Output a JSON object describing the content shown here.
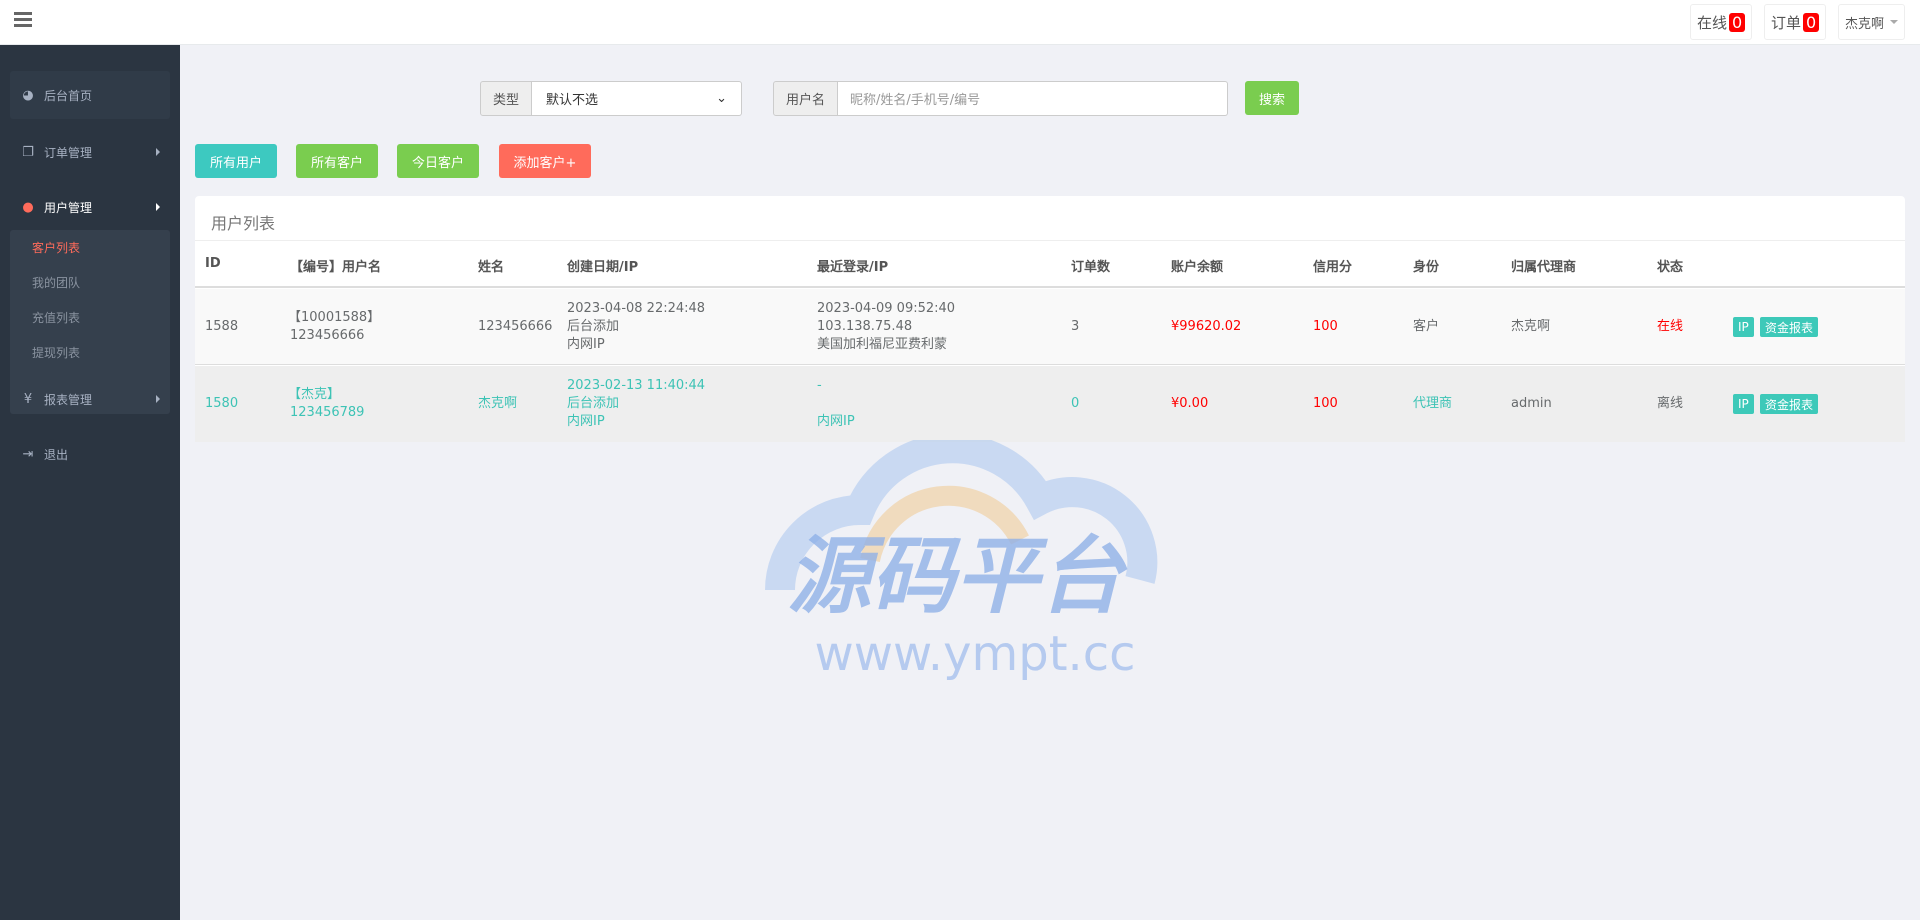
{
  "header": {
    "online_label": "在线",
    "online_count": "0",
    "orders_label": "订单",
    "orders_count": "0",
    "user": "杰克啊"
  },
  "sidebar": {
    "items": [
      {
        "label": "后台首页",
        "icon": "dashboard-icon"
      },
      {
        "label": "订单管理",
        "icon": "copy-icon"
      },
      {
        "label": "用户管理",
        "icon": "user-icon"
      },
      {
        "label": "报表管理",
        "icon": "yen-icon"
      },
      {
        "label": "退出",
        "icon": "sign-out-icon"
      }
    ],
    "sub_items": [
      "客户列表",
      "我的团队",
      "充值列表",
      "提现列表"
    ]
  },
  "filter": {
    "type_label": "类型",
    "type_value": "默认不选",
    "username_label": "用户名",
    "username_placeholder": "昵称/姓名/手机号/编号",
    "search_label": "搜索"
  },
  "actions": {
    "all_users": "所有用户",
    "all_customers": "所有客户",
    "today_customers": "今日客户",
    "add_customer": "添加客户+"
  },
  "colors": {
    "teal": "#3dc9b9",
    "green": "#7acd4f",
    "red": "#ff6b5b",
    "sidebar": "#2b3541"
  },
  "table": {
    "title": "用户列表",
    "columns": [
      "ID",
      "【编号】用户名",
      "姓名",
      "创建日期/IP",
      "最近登录/IP",
      "订单数",
      "账户余额",
      "信用分",
      "身份",
      "归属代理商",
      "状态"
    ],
    "rows": [
      {
        "id": "1588",
        "code": "【10001588】",
        "username": "123456666",
        "name": "123456666",
        "created": "2023-04-08 22:24:48",
        "created_src": "后台添加",
        "created_ip": "内网IP",
        "login": "2023-04-09 09:52:40",
        "login_ip": "103.138.75.48",
        "login_loc": "美国加利福尼亚费利蒙",
        "orders": "3",
        "balance": "¥99620.02",
        "credit": "100",
        "role": "客户",
        "agent": "杰克啊",
        "status": "在线",
        "ip_btn": "IP",
        "report_btn": "资金报表"
      },
      {
        "id": "1580",
        "code": "【杰克】",
        "username": "123456789",
        "name": "杰克啊",
        "created": "2023-02-13 11:40:44",
        "created_src": "后台添加",
        "created_ip": "内网IP",
        "login": "-",
        "login_ip": "",
        "login_loc": "内网IP",
        "orders": "0",
        "balance": "¥0.00",
        "credit": "100",
        "role": "代理商",
        "agent": "admin",
        "status": "离线",
        "ip_btn": "IP",
        "report_btn": "资金报表"
      }
    ]
  },
  "watermark": {
    "text": "源码平台",
    "url": "www.ympt.cc"
  }
}
